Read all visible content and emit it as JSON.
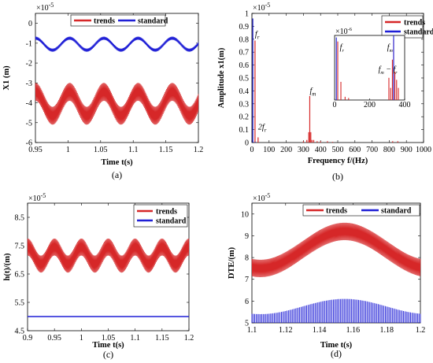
{
  "chart_data": [
    {
      "id": "a",
      "type": "line",
      "panel_label": "(a)",
      "xlabel": "Time t(s)",
      "ylabel": "X1 (m)",
      "exponent": "×10",
      "exponent_power": "-5",
      "xlim": [
        0.95,
        1.2
      ],
      "ylim": [
        -6,
        0.5
      ],
      "x_ticks": [
        0.95,
        1,
        1.05,
        1.1,
        1.15,
        1.2
      ],
      "x_tick_labels": [
        "0.95",
        "1",
        "1.05",
        "1.1",
        "1.15",
        "1.2"
      ],
      "y_ticks": [
        -6,
        -5,
        -4,
        -3,
        -2,
        -1,
        0
      ],
      "y_tick_labels": [
        "-6",
        "-5",
        "-4",
        "-3",
        "-2",
        "-1",
        "0"
      ],
      "legend_position": "top",
      "series": [
        {
          "name": "trends",
          "color": "#d62728",
          "style": "banded-oscillation",
          "center": -4.05,
          "slow_amplitude": 0.6,
          "slow_period": 0.0525,
          "fast_amplitude": 0.45
        },
        {
          "name": "standard",
          "color": "#1f1fd6",
          "style": "banded-oscillation",
          "center": -1.05,
          "slow_amplitude": 0.3,
          "slow_period": 0.0525,
          "fast_amplitude": 0.08
        }
      ]
    },
    {
      "id": "b",
      "type": "bar",
      "panel_label": "(b)",
      "xlabel": "Frequency f/(Hz)",
      "ylabel": "Amplitude x1(m)",
      "exponent": "×10",
      "exponent_power": "-5",
      "xlim": [
        0,
        1000
      ],
      "ylim": [
        0,
        1
      ],
      "x_ticks": [
        0,
        100,
        200,
        300,
        400,
        500,
        600,
        700,
        800,
        900,
        1000
      ],
      "x_tick_labels": [
        "0",
        "100",
        "200",
        "300",
        "400",
        "500",
        "600",
        "700",
        "800",
        "900",
        "1000"
      ],
      "y_ticks": [
        0,
        0.1,
        0.2,
        0.3,
        0.4,
        0.5,
        0.6,
        0.7,
        0.8,
        0.9,
        1
      ],
      "y_tick_labels": [
        "0",
        "0.1",
        "0.2",
        "0.3",
        "0.4",
        "0.5",
        "0.6",
        "0.7",
        "0.8",
        "0.9",
        "1"
      ],
      "legend_position": "top-right",
      "series": [
        {
          "name": "trends",
          "color": "#d62728",
          "x": [
            18,
            36,
            300,
            320,
            331,
            337,
            343,
            350,
            360,
            380,
            400,
            440,
            470,
            820,
            850
          ],
          "values": [
            0.79,
            0.04,
            0.01,
            0.02,
            0.08,
            0.36,
            0.08,
            0.02,
            0.02,
            0.01,
            0.01,
            0.01,
            0.005,
            0.01,
            0.01
          ]
        },
        {
          "name": "standard",
          "color": "#1f1fd6",
          "x": [
            5,
            20
          ],
          "values": [
            0.96,
            0.005
          ]
        }
      ],
      "annotations": [
        {
          "text": "f",
          "sub": "r",
          "x": 18,
          "y": 0.82
        },
        {
          "text": "f",
          "sub": "m",
          "x": 337,
          "y": 0.38
        },
        {
          "text": "2f",
          "sub": "r",
          "x": 36,
          "y": 0.1
        }
      ],
      "inset": {
        "exponent": "×10",
        "exponent_power": "-6",
        "xlim": [
          0,
          400
        ],
        "ylim": [
          0,
          1.6
        ],
        "x_ticks": [
          0,
          200,
          400
        ],
        "x_tick_labels": [
          "0",
          "200",
          "400"
        ],
        "series": [
          {
            "name": "trends",
            "color": "#d62728",
            "x": [
              18,
              36,
              60,
              80,
              310,
              320,
              330,
              337,
              344,
              354,
              364
            ],
            "values": [
              1.45,
              0.45,
              0.08,
              0.05,
              0.55,
              0.3,
              1.0,
              1.5,
              0.7,
              0.5,
              0.3
            ]
          },
          {
            "name": "standard",
            "color": "#1f1fd6",
            "x": [
              10,
              337
            ],
            "values": [
              1.55,
              1.6
            ]
          }
        ],
        "annotations": [
          {
            "text": "f",
            "sub": "r",
            "x": 30,
            "y": 1.25
          },
          {
            "text": "f",
            "sub": "m",
            "x": 300,
            "y": 1.25
          },
          {
            "text": "f",
            "sub": "m",
            "mid": " − f",
            "sub2": "r",
            "x": 250,
            "y": 0.7
          }
        ]
      }
    },
    {
      "id": "c",
      "type": "line",
      "panel_label": "(c)",
      "xlabel": "Time t(s)",
      "ylabel": "h(t)/(m)",
      "exponent": "×10",
      "exponent_power": "-5",
      "xlim": [
        0.9,
        1.2
      ],
      "ylim": [
        4.5,
        9
      ],
      "x_ticks": [
        0.9,
        0.95,
        1,
        1.05,
        1.1,
        1.15,
        1.2
      ],
      "x_tick_labels": [
        "0.9",
        "0.95",
        "1",
        "1.05",
        "1.1",
        "1.15",
        "1.2"
      ],
      "y_ticks": [
        4.5,
        5.5,
        6.5,
        7.5,
        8.5
      ],
      "y_tick_labels": [
        "4.5",
        "5.5",
        "6.5",
        "7.5",
        "8.5"
      ],
      "legend_position": "top-right",
      "series": [
        {
          "name": "trends",
          "color": "#d62728",
          "style": "banded-oscillation",
          "center": 7.15,
          "slow_amplitude": 0.3,
          "slow_period": 0.05,
          "fast_amplitude": 0.3
        },
        {
          "name": "standard",
          "color": "#1f1fd6",
          "style": "constant",
          "value": 5.0
        }
      ]
    },
    {
      "id": "d",
      "type": "line",
      "panel_label": "(d)",
      "xlabel": "Time t(s)",
      "ylabel": "DTE/(m)",
      "exponent": "×10",
      "exponent_power": "-5",
      "xlim": [
        1.1,
        1.2
      ],
      "ylim": [
        5,
        10.5
      ],
      "x_ticks": [
        1.1,
        1.12,
        1.14,
        1.16,
        1.18,
        1.2
      ],
      "x_tick_labels": [
        "1.1",
        "1.12",
        "1.14",
        "1.16",
        "1.18",
        "1.2"
      ],
      "y_ticks": [
        5,
        6,
        7,
        8,
        9,
        10
      ],
      "y_tick_labels": [
        "5",
        "6",
        "7",
        "8",
        "9",
        "10"
      ],
      "legend_position": "top-right",
      "series": [
        {
          "name": "trends",
          "color": "#d62728",
          "style": "banded-oscillation",
          "center": 8.35,
          "slow_amplitude": 0.85,
          "slow_period": 0.1,
          "slow_phase_center": 1.155,
          "fast_amplitude": 0.4
        },
        {
          "name": "standard",
          "color": "#1f1fd6",
          "style": "comb",
          "top_center": 5.75,
          "top_amplitude": 0.35,
          "slow_period": 0.1,
          "slow_phase_center": 1.155,
          "bottom": 5.0
        }
      ]
    }
  ]
}
